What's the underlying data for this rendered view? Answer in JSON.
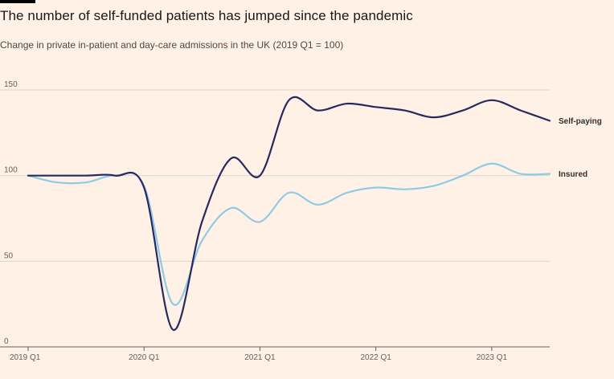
{
  "title": "The number of self-funded patients has jumped since the pandemic",
  "subtitle": "Change in private in-patient and day-care admissions in the UK (2019 Q1 = 100)",
  "chart_data": {
    "type": "line",
    "title": "The number of self-funded patients has jumped since the pandemic",
    "subtitle": "Change in private in-patient and day-care admissions in the UK (2019 Q1 = 100)",
    "xlabel": "",
    "ylabel": "",
    "ylim": [
      0,
      150
    ],
    "xlim": [
      2019.0,
      2023.5
    ],
    "grid": true,
    "y_ticks": [
      {
        "value": 0,
        "label": "0"
      },
      {
        "value": 50,
        "label": "50"
      },
      {
        "value": 100,
        "label": "100"
      },
      {
        "value": 150,
        "label": "150"
      }
    ],
    "x_ticks": [
      {
        "value": 2019.0,
        "label": "2019 Q1"
      },
      {
        "value": 2020.0,
        "label": "2020 Q1"
      },
      {
        "value": 2021.0,
        "label": "2021 Q1"
      },
      {
        "value": 2022.0,
        "label": "2022 Q1"
      },
      {
        "value": 2023.0,
        "label": "2023 Q1"
      }
    ],
    "series": [
      {
        "name": "Self-paying",
        "color": "#262a5e",
        "x": [
          2019.0,
          2019.25,
          2019.5,
          2019.75,
          2020.0,
          2020.25,
          2020.5,
          2020.75,
          2021.0,
          2021.25,
          2021.5,
          2021.75,
          2022.0,
          2022.25,
          2022.5,
          2022.75,
          2023.0,
          2023.25,
          2023.5
        ],
        "values": [
          100,
          100,
          100,
          100,
          93,
          10,
          73,
          110,
          100,
          144,
          138,
          142,
          140,
          138,
          134,
          138,
          144,
          138,
          132
        ]
      },
      {
        "name": "Insured",
        "color": "#8fcbe6",
        "x": [
          2019.0,
          2019.25,
          2019.5,
          2019.75,
          2020.0,
          2020.25,
          2020.5,
          2020.75,
          2021.0,
          2021.25,
          2021.5,
          2021.75,
          2022.0,
          2022.25,
          2022.5,
          2022.75,
          2023.0,
          2023.25,
          2023.5
        ],
        "values": [
          100,
          96,
          96,
          100,
          94,
          25,
          62,
          81,
          73,
          90,
          83,
          90,
          93,
          92,
          94,
          100,
          107,
          101,
          101
        ]
      }
    ]
  }
}
